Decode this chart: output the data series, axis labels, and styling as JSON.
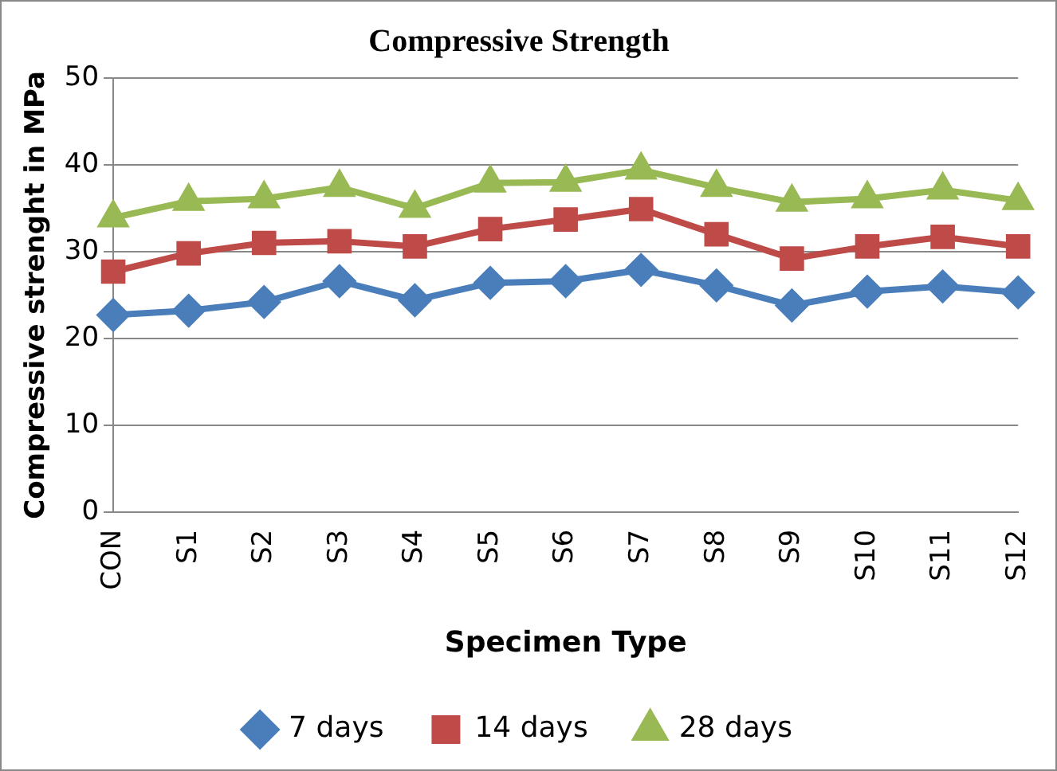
{
  "chart_data": {
    "type": "line",
    "title": "Compressive Strength",
    "xlabel": "Specimen Type",
    "ylabel": "Compressive strenght in MPa",
    "categories": [
      "CON",
      "S1",
      "S2",
      "S3",
      "S4",
      "S5",
      "S6",
      "S7",
      "S8",
      "S9",
      "S10",
      "S11",
      "S12"
    ],
    "series": [
      {
        "name": "7 days",
        "color": "#4a7ebb",
        "marker": "diamond",
        "values": [
          22.7,
          23.2,
          24.2,
          26.6,
          24.4,
          26.4,
          26.6,
          27.9,
          26.1,
          23.8,
          25.4,
          26.0,
          25.3
        ]
      },
      {
        "name": "14 days",
        "color": "#be4b48",
        "marker": "square",
        "values": [
          27.7,
          29.8,
          31.0,
          31.2,
          30.6,
          32.6,
          33.7,
          34.9,
          32.0,
          29.2,
          30.6,
          31.7,
          30.6
        ]
      },
      {
        "name": "28 days",
        "color": "#98b954",
        "marker": "triangle",
        "values": [
          33.9,
          35.8,
          36.1,
          37.4,
          35.0,
          37.9,
          38.0,
          39.4,
          37.4,
          35.7,
          36.1,
          37.1,
          35.9
        ]
      }
    ],
    "ylim": [
      0,
      50
    ],
    "yticks": [
      0,
      10,
      20,
      30,
      40,
      50
    ],
    "grid": "y",
    "legend": "bottom"
  }
}
